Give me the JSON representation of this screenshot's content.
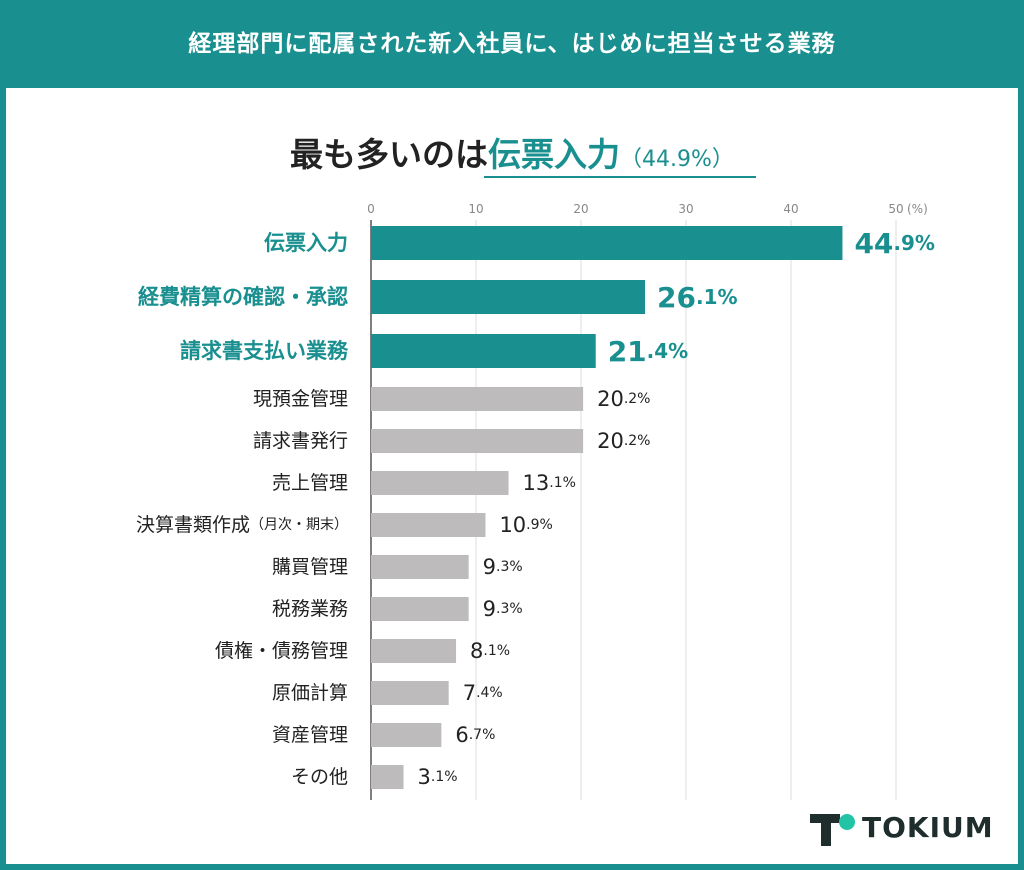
{
  "header": {
    "title": "経理部門に配属された新入社員に、はじめに担当させる業務"
  },
  "headline": {
    "lead": "最も多いのは",
    "highlight": "伝票入力",
    "percent": "（44.9%）"
  },
  "brand": {
    "name": "TOKIUM",
    "icon": "tokium-logo-icon"
  },
  "colors": {
    "accent": "#1a8f8f",
    "bar_gray": "#bdbbbc",
    "text": "#222222"
  },
  "chart_data": {
    "type": "bar",
    "orientation": "horizontal",
    "unit": "(%)",
    "xlim": [
      0,
      50
    ],
    "ticks": [
      0,
      10,
      20,
      30,
      40,
      50
    ],
    "grid": true,
    "categories": [
      "伝票入力",
      "経費精算の確認・承認",
      "請求書支払い業務",
      "現預金管理",
      "請求書発行",
      "売上管理",
      "決算書類作成（月次・期末）",
      "購買管理",
      "税務業務",
      "債権・債務管理",
      "原価計算",
      "資産管理",
      "その他"
    ],
    "values": [
      44.9,
      26.1,
      21.4,
      20.2,
      20.2,
      13.1,
      10.9,
      9.3,
      9.3,
      8.1,
      7.4,
      6.7,
      3.1
    ],
    "highlighted": [
      true,
      true,
      true,
      false,
      false,
      false,
      false,
      false,
      false,
      false,
      false,
      false,
      false
    ]
  }
}
